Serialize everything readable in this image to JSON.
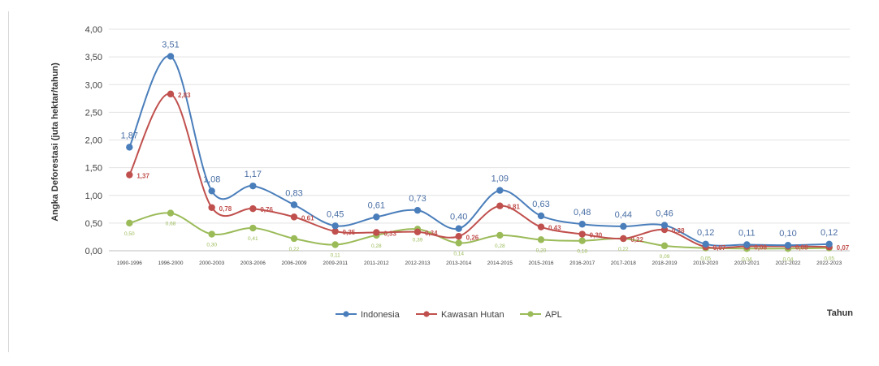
{
  "chart_data": {
    "type": "line",
    "title": "",
    "ylabel": "Angka Deforestasi (juta hektar/tahun)",
    "xlabel": "Tahun",
    "ylim": [
      0,
      4
    ],
    "yticks": [
      "0,00",
      "0,50",
      "1,00",
      "1,50",
      "2,00",
      "2,50",
      "3,00",
      "3,50",
      "4,00"
    ],
    "ytick_values": [
      0,
      0.5,
      1,
      1.5,
      2,
      2.5,
      3,
      3.5,
      4
    ],
    "grid": true,
    "legend_position": "bottom",
    "categories": [
      "1990-1996",
      "1996-2000",
      "2000-2003",
      "2003-2006",
      "2006-2009",
      "2009-2011",
      "2011-2012",
      "2012-2013",
      "2013-2014",
      "2014-2015",
      "2015-2016",
      "2016-2017",
      "2017-2018",
      "2018-2019",
      "2019-2020",
      "2020-2021",
      "2021-2022",
      "2022-2023"
    ],
    "series": [
      {
        "name": "Indonesia",
        "color": "#4a7ebb",
        "values": [
          1.87,
          3.51,
          1.08,
          1.17,
          0.83,
          0.45,
          0.61,
          0.73,
          0.4,
          1.09,
          0.63,
          0.48,
          0.44,
          0.46,
          0.12,
          0.11,
          0.1,
          0.12
        ],
        "labels": [
          "1,87",
          "3,51",
          "1,08",
          "1,17",
          "0,83",
          "0,45",
          "0,61",
          "0,73",
          "0,40",
          "1,09",
          "0,63",
          "0,48",
          "0,44",
          "0,46",
          "0,12",
          "0,11",
          "0,10",
          "0,12"
        ]
      },
      {
        "name": "Kawasan Hutan",
        "color": "#c0504d",
        "values": [
          1.37,
          2.83,
          0.78,
          0.76,
          0.61,
          0.35,
          0.33,
          0.34,
          0.26,
          0.81,
          0.43,
          0.3,
          0.22,
          0.38,
          0.07,
          0.08,
          0.08,
          0.07
        ],
        "labels": [
          "1,37",
          "2,83",
          "0,78",
          "0,76",
          "0,61",
          "0,35",
          "0,33",
          "0,34",
          "0,26",
          "0,81",
          "0,43",
          "0,30",
          "0,22",
          "0,38",
          "0,07",
          "0,08",
          "0,08",
          "0,07"
        ]
      },
      {
        "name": "APL",
        "color": "#9bbb59",
        "values": [
          0.5,
          0.68,
          0.3,
          0.41,
          0.22,
          0.11,
          0.28,
          0.39,
          0.14,
          0.28,
          0.2,
          0.18,
          0.22,
          0.09,
          0.05,
          0.04,
          0.04,
          0.05
        ],
        "labels": [
          "0,50",
          "0,68",
          "0,30",
          "0,41",
          "0,22",
          "0,11",
          "0,28",
          "0,39",
          "0,14",
          "0,28",
          "0,20",
          "0,18",
          "0,22",
          "0,09",
          "0,05",
          "0,04",
          "0,04",
          "0,05"
        ]
      }
    ]
  }
}
